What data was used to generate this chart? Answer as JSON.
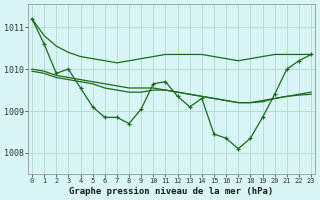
{
  "x": [
    0,
    1,
    2,
    3,
    4,
    5,
    6,
    7,
    8,
    9,
    10,
    11,
    12,
    13,
    14,
    15,
    16,
    17,
    18,
    19,
    20,
    21,
    22,
    23
  ],
  "line_main": [
    1011.2,
    1010.6,
    1009.9,
    1010.0,
    1009.55,
    1009.1,
    1008.85,
    1008.85,
    1008.7,
    1009.05,
    1009.65,
    1009.7,
    1009.35,
    1009.1,
    1009.3,
    1008.45,
    1008.35,
    1008.1,
    1008.35,
    1008.85,
    1009.4,
    1010.0,
    1010.2,
    1010.35
  ],
  "line_top": [
    1011.2,
    1010.8,
    1010.55,
    1010.4,
    1010.3,
    1010.25,
    1010.2,
    1010.15,
    1010.2,
    1010.25,
    1010.3,
    1010.35,
    1010.35,
    1010.35,
    1010.35,
    1010.3,
    1010.25,
    1010.2,
    1010.25,
    1010.3,
    1010.35,
    1010.35,
    1010.35,
    1010.35
  ],
  "line_mid1": [
    1010.0,
    1009.95,
    1009.85,
    1009.8,
    1009.75,
    1009.7,
    1009.65,
    1009.6,
    1009.55,
    1009.55,
    1009.55,
    1009.5,
    1009.45,
    1009.4,
    1009.35,
    1009.3,
    1009.25,
    1009.2,
    1009.2,
    1009.25,
    1009.3,
    1009.35,
    1009.4,
    1009.45
  ],
  "line_mid2": [
    1009.95,
    1009.9,
    1009.8,
    1009.75,
    1009.7,
    1009.65,
    1009.55,
    1009.5,
    1009.45,
    1009.45,
    1009.5,
    1009.5,
    1009.45,
    1009.4,
    1009.35,
    1009.3,
    1009.25,
    1009.2,
    1009.2,
    1009.22,
    1009.3,
    1009.35,
    1009.38,
    1009.4
  ],
  "color": "#1a6b1a",
  "bg_color": "#d8f4f4",
  "grid_color": "#a8d8c8",
  "title": "Graphe pression niveau de la mer (hPa)",
  "ylim": [
    1007.5,
    1011.55
  ],
  "yticks": [
    1008,
    1009,
    1010,
    1011
  ],
  "xticks": [
    0,
    1,
    2,
    3,
    4,
    5,
    6,
    7,
    8,
    9,
    10,
    11,
    12,
    13,
    14,
    15,
    16,
    17,
    18,
    19,
    20,
    21,
    22,
    23
  ]
}
